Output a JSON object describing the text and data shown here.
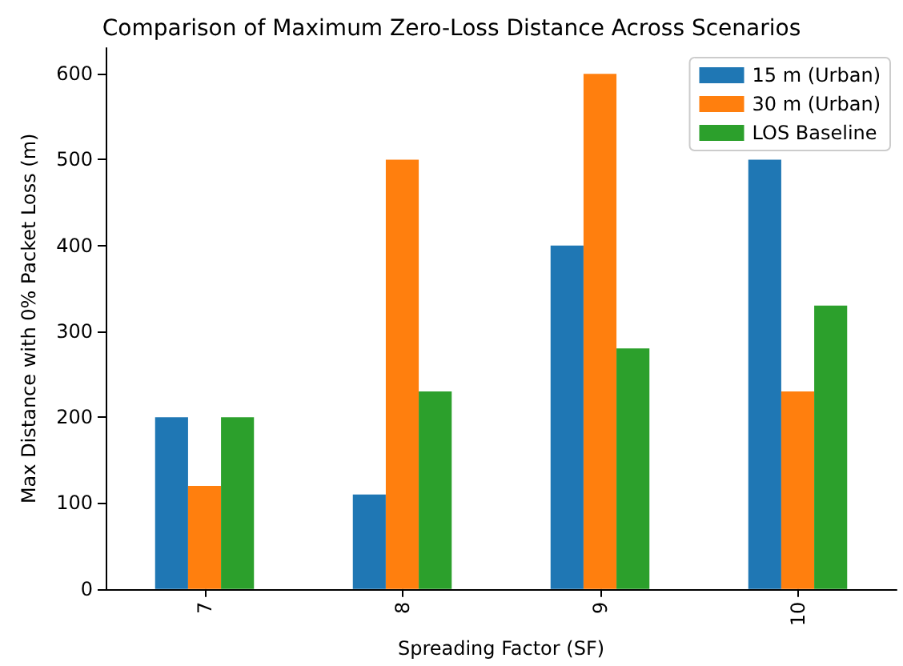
{
  "chart_data": {
    "type": "bar",
    "title": "Comparison of Maximum Zero-Loss Distance Across Scenarios",
    "xlabel": "Spreading Factor (SF)",
    "ylabel": "Max Distance with 0% Packet Loss (m)",
    "categories": [
      "7",
      "8",
      "9",
      "10"
    ],
    "series": [
      {
        "name": "15 m (Urban)",
        "color": "#1f77b4",
        "values": [
          200,
          110,
          400,
          500
        ]
      },
      {
        "name": "30 m (Urban)",
        "color": "#ff7f0e",
        "values": [
          120,
          500,
          600,
          230
        ]
      },
      {
        "name": "LOS Baseline",
        "color": "#2ca02c",
        "values": [
          200,
          230,
          280,
          330
        ]
      }
    ],
    "ylim": [
      0,
      630
    ],
    "yticks": [
      0,
      100,
      200,
      300,
      400,
      500,
      600
    ],
    "grid": false,
    "legend": "top right"
  }
}
